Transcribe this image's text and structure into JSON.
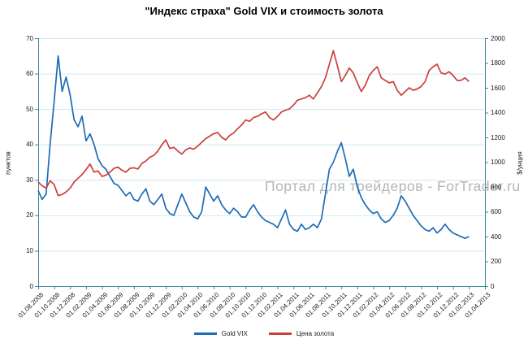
{
  "title": "\"Индекс страха\" Gold VIX и стоимость золота",
  "watermark": "Портал для трейдеров - ForTrader.ru",
  "colors": {
    "vix_line": "#1E6CB5",
    "gold_line": "#CD3F3C",
    "gridline": "#CFEAF0",
    "axis": "#35899C",
    "tick_text": "#1a1a1a",
    "watermark_text": "#b5b5b5"
  },
  "legend": {
    "items": [
      {
        "label": "Gold VIX",
        "color": "#1E6CB5"
      },
      {
        "label": "Цена золота",
        "color": "#CD3F3C"
      }
    ]
  },
  "chart_data": {
    "type": "line",
    "title": "\"Индекс страха\" Gold VIX и стоимость золота",
    "grid": true,
    "legend_position": "bottom",
    "x_months_total": 56,
    "series_months": 54,
    "x_ticks": [
      "01.08.2008",
      "01.10.2008",
      "01.12.2008",
      "01.02.2009",
      "01.04.2009",
      "01.06.2009",
      "01.08.2009",
      "01.10.2009",
      "01.12.2009",
      "01.02.2010",
      "01.04.2010",
      "01.06.2010",
      "01.08.2010",
      "01.10.2010",
      "01.12.2010",
      "01.02.2011",
      "01.04.2011",
      "01.06.2011",
      "01.08.2011",
      "01.10.2011",
      "01.12.2011",
      "01.02.2012",
      "01.04.2012",
      "01.06.2012",
      "01.08.2012",
      "01.10.2012",
      "01.12.2012",
      "01.02.2013",
      "01.04.2013"
    ],
    "left_axis": {
      "label": "пунктов",
      "range": [
        0,
        70
      ],
      "ticks": [
        0,
        10,
        20,
        30,
        40,
        50,
        60,
        70
      ]
    },
    "right_axis": {
      "label": "$/унция",
      "range": [
        0,
        2000
      ],
      "ticks": [
        0,
        200,
        400,
        600,
        800,
        1000,
        1200,
        1400,
        1600,
        1800,
        2000
      ]
    },
    "series": [
      {
        "name": "Gold VIX",
        "axis": "left",
        "color": "#1E6CB5",
        "values": [
          27,
          24.5,
          26,
          40,
          52,
          65,
          55,
          59,
          54,
          47,
          45,
          48,
          41,
          43,
          40,
          36,
          34,
          33,
          31,
          29,
          28.5,
          27,
          25.5,
          26.5,
          24.5,
          24,
          26,
          27.5,
          24,
          23,
          24.5,
          26,
          22,
          20.5,
          20,
          23,
          26,
          23.5,
          21,
          19.5,
          19,
          21,
          28,
          26,
          24,
          25.5,
          23,
          21.5,
          20.5,
          22,
          21,
          19.5,
          19.5,
          21.5,
          23,
          21,
          19.5,
          18.5,
          18,
          17.5,
          16.5,
          19,
          21.5,
          17.5,
          16,
          15.5,
          17.5,
          16,
          16.5,
          17.5,
          16.5,
          19,
          26,
          33,
          35,
          38,
          40.5,
          36,
          31,
          33,
          28,
          25,
          23,
          21.5,
          20.5,
          21,
          19,
          18,
          18.5,
          20,
          22,
          25.5,
          24,
          22,
          20,
          18.5,
          17,
          16,
          15.5,
          16.5,
          15,
          16,
          17.5,
          16,
          15,
          14.5,
          14,
          13.5,
          14
        ]
      },
      {
        "name": "Цена золота",
        "axis": "right",
        "color": "#CD3F3C",
        "values": [
          840,
          810,
          790,
          850,
          820,
          730,
          740,
          760,
          790,
          840,
          870,
          900,
          940,
          985,
          920,
          930,
          885,
          895,
          920,
          950,
          960,
          935,
          920,
          950,
          955,
          945,
          990,
          1010,
          1040,
          1055,
          1090,
          1140,
          1180,
          1110,
          1120,
          1090,
          1065,
          1100,
          1115,
          1105,
          1130,
          1160,
          1190,
          1210,
          1230,
          1240,
          1200,
          1180,
          1215,
          1235,
          1270,
          1300,
          1340,
          1330,
          1360,
          1370,
          1390,
          1405,
          1360,
          1340,
          1370,
          1405,
          1420,
          1430,
          1460,
          1500,
          1510,
          1520,
          1540,
          1510,
          1560,
          1610,
          1680,
          1790,
          1900,
          1780,
          1650,
          1700,
          1760,
          1720,
          1640,
          1570,
          1620,
          1700,
          1740,
          1770,
          1680,
          1660,
          1640,
          1650,
          1580,
          1540,
          1570,
          1600,
          1580,
          1590,
          1610,
          1650,
          1740,
          1770,
          1790,
          1720,
          1710,
          1730,
          1700,
          1660,
          1660,
          1680,
          1650
        ]
      }
    ]
  }
}
